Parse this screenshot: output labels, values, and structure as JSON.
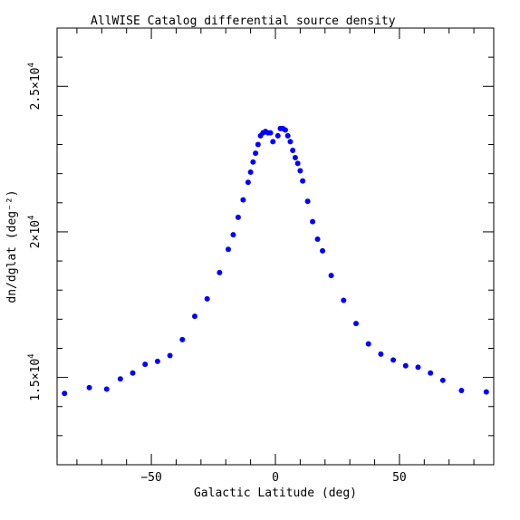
{
  "chart_data": {
    "type": "scatter",
    "title": "AllWISE Catalog differential source density",
    "xlabel": "Galactic Latitude (deg)",
    "ylabel": "dn/dglat (deg⁻²)",
    "xlim": [
      -88,
      88
    ],
    "ylim": [
      12000,
      27000
    ],
    "x_ticks": [
      {
        "value": -50,
        "label": "−50"
      },
      {
        "value": 0,
        "label": "0"
      },
      {
        "value": 50,
        "label": "50"
      }
    ],
    "y_ticks": [
      {
        "value": 15000,
        "label": "1.5×10",
        "exp": "4"
      },
      {
        "value": 20000,
        "label": "2×10",
        "exp": "4"
      },
      {
        "value": 25000,
        "label": "2.5×10",
        "exp": "4"
      }
    ],
    "marker_color": "#0000ff",
    "grid": false,
    "series": [
      {
        "x": [
          -85,
          -75,
          -68,
          -62.5,
          -57.5,
          -52.5,
          -47.5,
          -42.5,
          -37.5,
          -32.5,
          -27.5,
          -22.5,
          -19,
          -17,
          -15,
          -13,
          -11,
          -10,
          -9,
          -8,
          -7,
          -6,
          -5,
          -4,
          -3,
          -2,
          -1,
          1,
          2,
          3,
          4,
          5,
          6,
          7,
          8,
          9,
          10,
          11,
          13,
          15,
          17,
          19,
          22.5,
          27.5,
          32.5,
          37.5,
          42.5,
          47.5,
          52.5,
          57.5,
          62.5,
          67.5,
          75,
          85
        ],
        "y": [
          14450,
          14650,
          14600,
          14950,
          15150,
          15450,
          15550,
          15750,
          16300,
          17100,
          17700,
          18600,
          19400,
          19900,
          20500,
          21100,
          21700,
          22050,
          22400,
          22700,
          23000,
          23300,
          23400,
          23450,
          23400,
          23400,
          23100,
          23300,
          23550,
          23550,
          23500,
          23300,
          23100,
          22800,
          22550,
          22350,
          22100,
          21750,
          21050,
          20350,
          19750,
          19350,
          18500,
          17650,
          16850,
          16150,
          15800,
          15600,
          15400,
          15350,
          15150,
          14900,
          14550,
          14500
        ]
      }
    ]
  }
}
